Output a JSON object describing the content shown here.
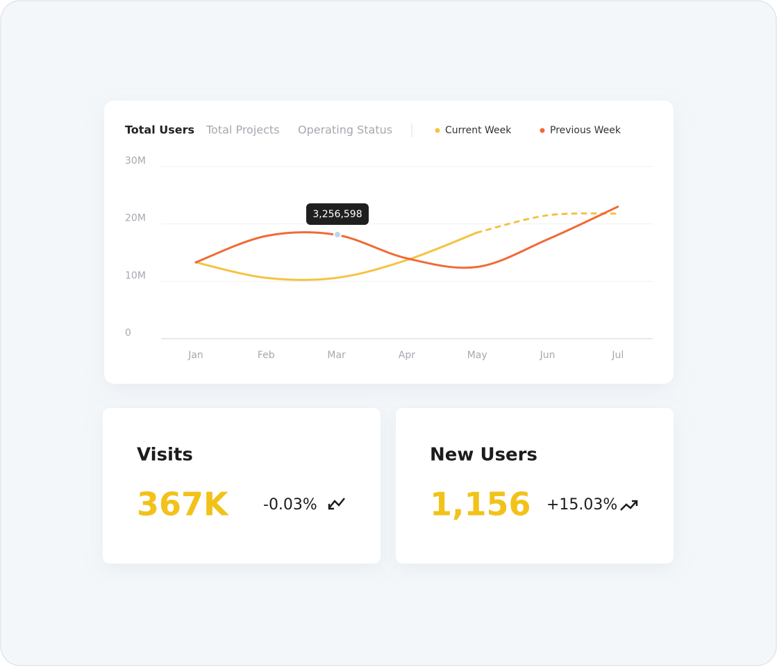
{
  "tabs": [
    "Total Users",
    "Total Projects",
    "Operating Status"
  ],
  "chart": {
    "type": "line",
    "categories": [
      "Jan",
      "Feb",
      "Mar",
      "Apr",
      "May",
      "Jun",
      "Jul"
    ],
    "series": [
      {
        "name": "Current Week",
        "color": "#f5c242",
        "values": [
          13.3,
          10.6,
          10.6,
          13.7,
          18.5,
          21.5,
          21.8
        ],
        "dashed_from": 4
      },
      {
        "name": "Previous Week",
        "color": "#f06a35",
        "values": [
          13.3,
          17.9,
          18.1,
          14.0,
          12.5,
          17.3,
          23.0
        ]
      }
    ],
    "ylim": [
      0,
      30
    ],
    "yticks": [
      0,
      {
        "value": 10,
        "label": "10M"
      },
      {
        "value": 20,
        "label": "20M"
      },
      {
        "value": 30,
        "label": "30M"
      }
    ],
    "grid": true,
    "tooltip": "3,256,598"
  },
  "cards": [
    {
      "title": "Visits",
      "value": "367K",
      "change": "-0.03%"
    },
    {
      "title": "New Users",
      "value": "1,156",
      "change": "+15.03%"
    }
  ]
}
